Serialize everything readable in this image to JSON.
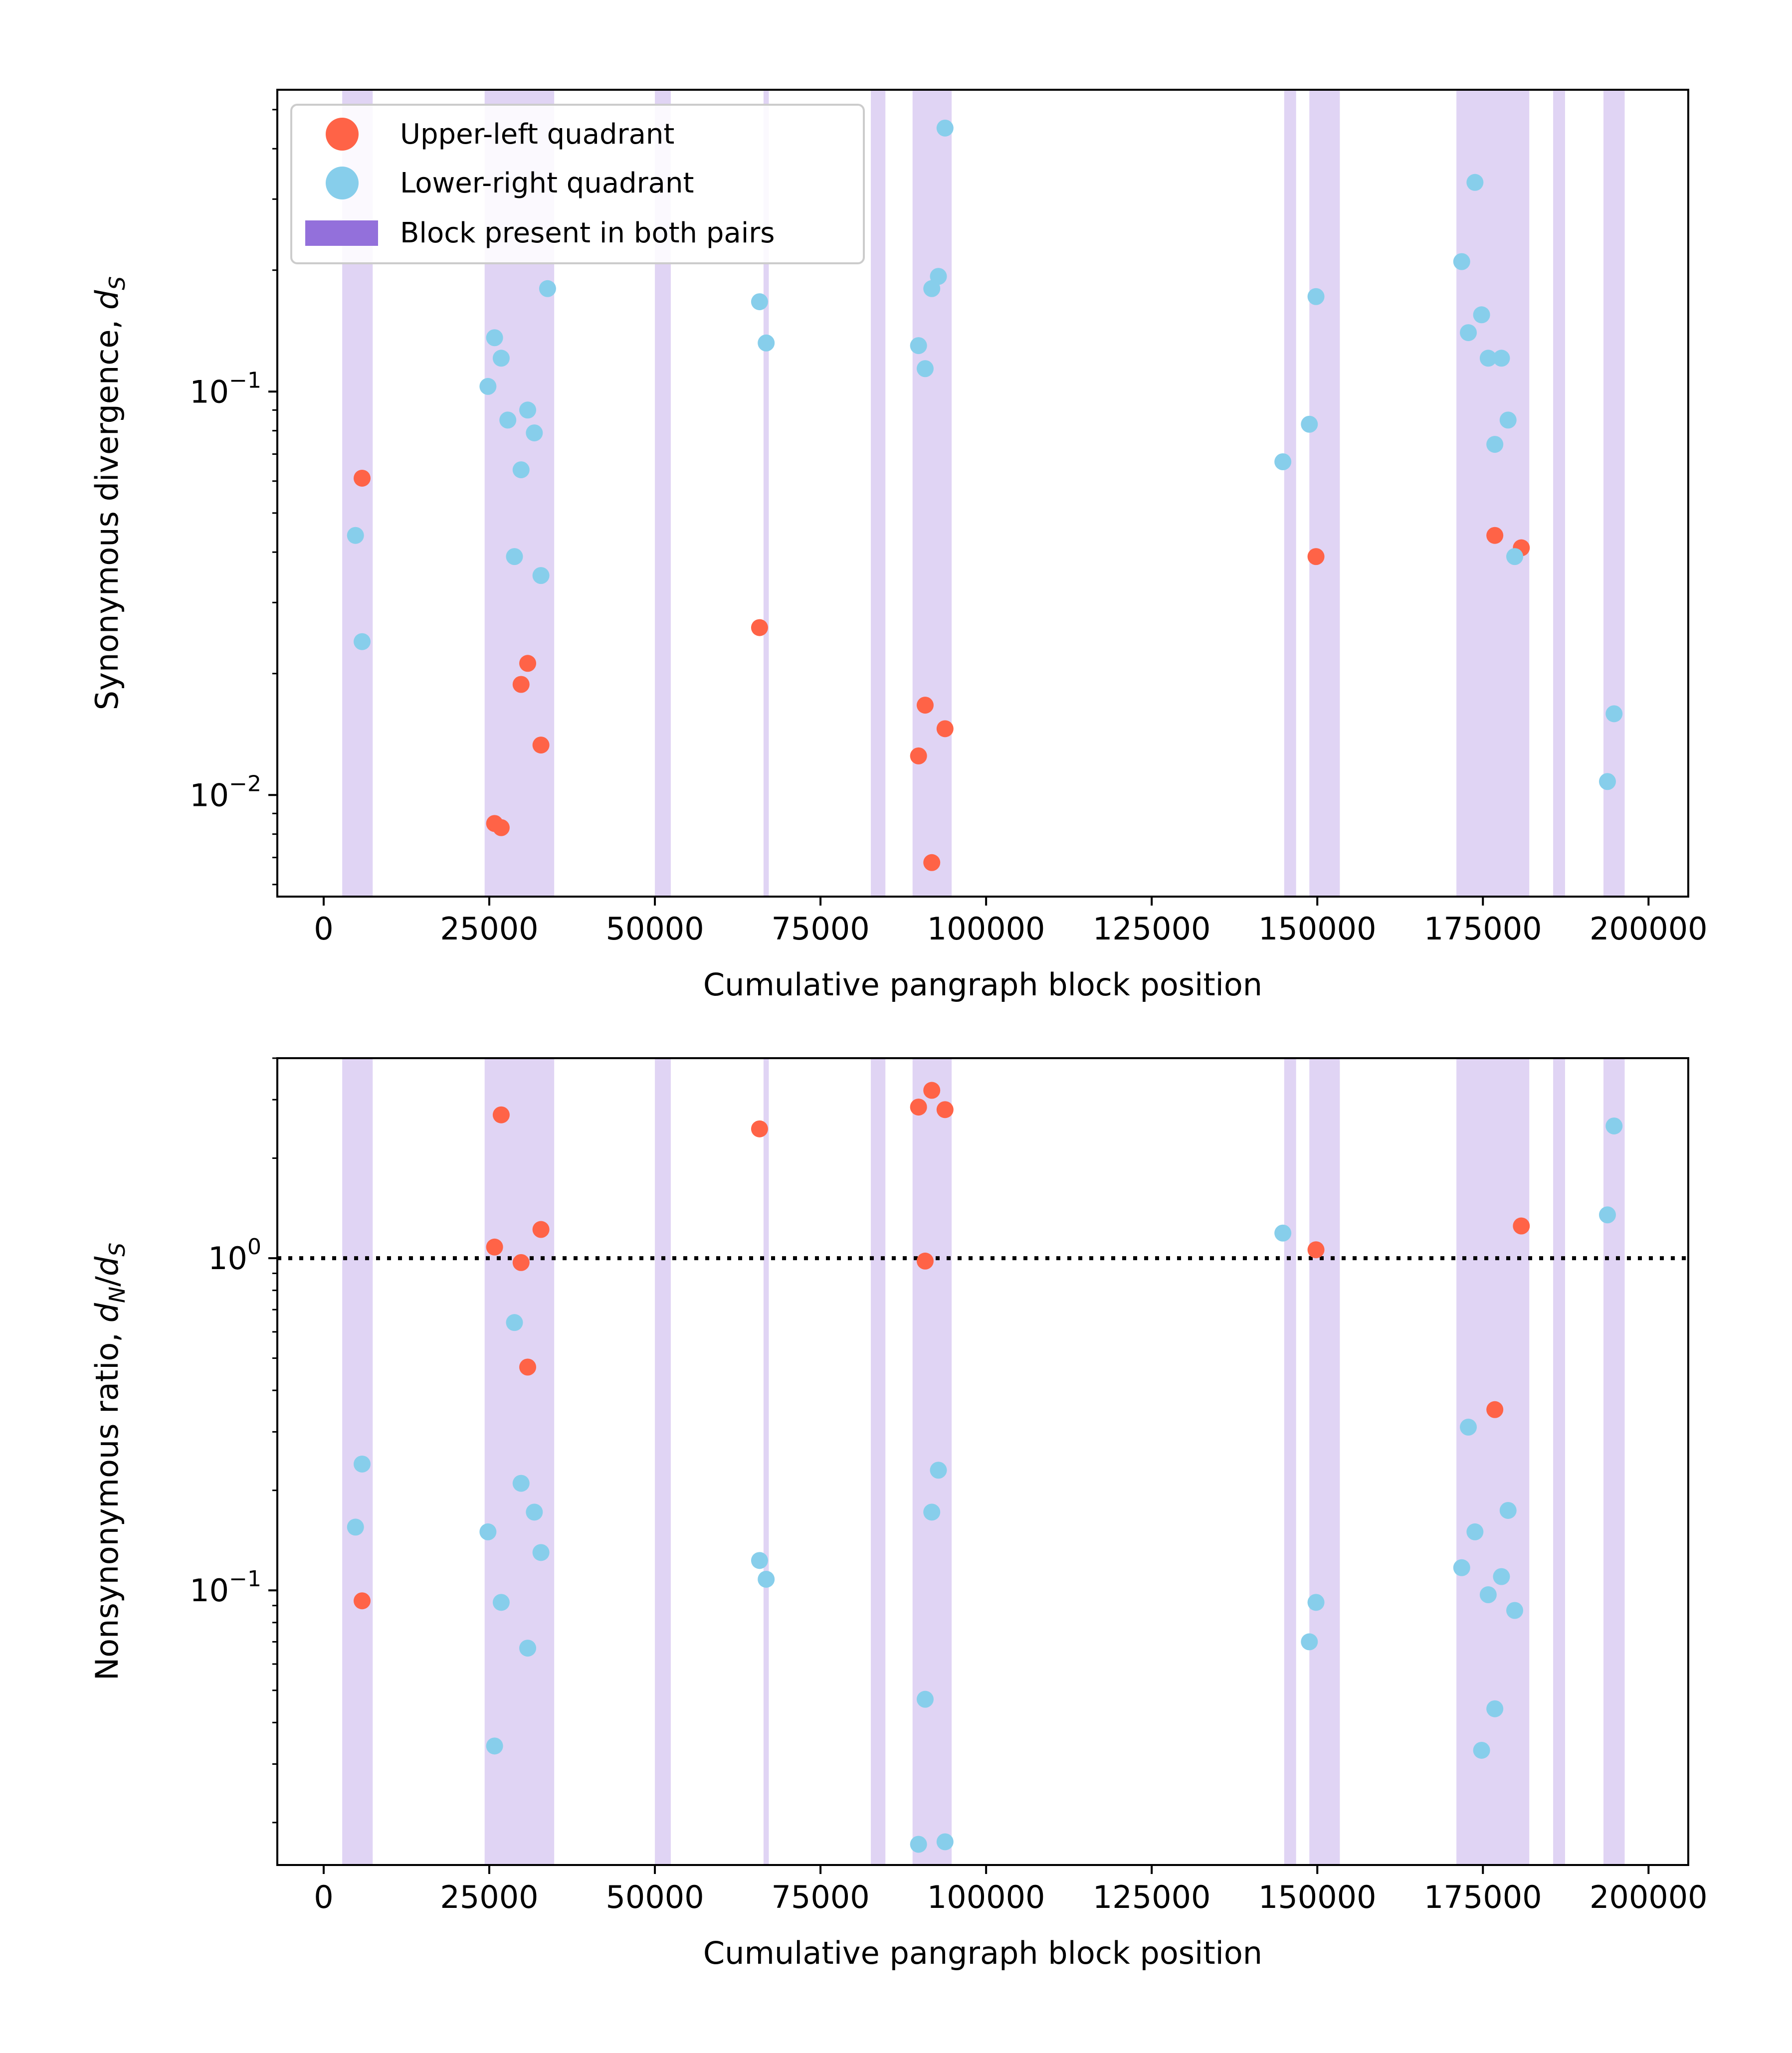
{
  "colors": {
    "upper_left": "#FF6347",
    "lower_right": "#87CEEB",
    "block_fill": "#9370DB",
    "block_shade": "#E0D4F4"
  },
  "legend": {
    "items": [
      {
        "label": "Upper-left quadrant",
        "color": "#FF6347",
        "marker": "circle"
      },
      {
        "label": "Lower-right quadrant",
        "color": "#87CEEB",
        "marker": "circle"
      },
      {
        "label": "Block present in both pairs",
        "color": "#9370DB",
        "marker": "rect"
      }
    ],
    "placement": "upper-left"
  },
  "chart_data": [
    {
      "type": "scatter",
      "xlabel": "Cumulative pangraph block position",
      "ylabel": "Synonymous divergence, d_S",
      "xlim": [
        -7000,
        206000
      ],
      "ylim": [
        0.0056,
        0.56
      ],
      "yscale": "log",
      "xticks": [
        0,
        25000,
        50000,
        75000,
        100000,
        125000,
        150000,
        175000,
        200000
      ],
      "yticks": [
        {
          "value": 0.01,
          "base": "10",
          "exp": "−2"
        },
        {
          "value": 0.1,
          "base": "10",
          "exp": "−1"
        }
      ],
      "grid": false,
      "legend": "upper-left",
      "shaded_blocks": [
        [
          2800,
          7400
        ],
        [
          24300,
          34800
        ],
        [
          50000,
          52400
        ],
        [
          66400,
          67200
        ],
        [
          82600,
          84800
        ],
        [
          88900,
          94800
        ],
        [
          145000,
          146800
        ],
        [
          148800,
          153400
        ],
        [
          171000,
          182000
        ],
        [
          185600,
          187400
        ],
        [
          193200,
          196400
        ]
      ],
      "series": [
        {
          "name": "Upper-left quadrant",
          "color": "#FF6347",
          "points": [
            [
              5800,
              0.061
            ],
            [
              25800,
              0.0085
            ],
            [
              26800,
              0.0083
            ],
            [
              29800,
              0.0188
            ],
            [
              30800,
              0.0212
            ],
            [
              32800,
              0.0133
            ],
            [
              65800,
              0.026
            ],
            [
              89800,
              0.0125
            ],
            [
              90800,
              0.0167
            ],
            [
              91800,
              0.0068
            ],
            [
              93800,
              0.0146
            ],
            [
              149800,
              0.039
            ],
            [
              176800,
              0.044
            ],
            [
              180800,
              0.041
            ]
          ]
        },
        {
          "name": "Lower-right quadrant",
          "color": "#87CEEB",
          "points": [
            [
              4800,
              0.044
            ],
            [
              5800,
              0.024
            ],
            [
              24800,
              0.103
            ],
            [
              25800,
              0.136
            ],
            [
              26800,
              0.121
            ],
            [
              27800,
              0.085
            ],
            [
              28800,
              0.039
            ],
            [
              29800,
              0.064
            ],
            [
              30800,
              0.09
            ],
            [
              31800,
              0.079
            ],
            [
              32800,
              0.035
            ],
            [
              33800,
              0.18
            ],
            [
              65800,
              0.167
            ],
            [
              66800,
              0.132
            ],
            [
              89800,
              0.13
            ],
            [
              90800,
              0.114
            ],
            [
              91800,
              0.18
            ],
            [
              92800,
              0.193
            ],
            [
              93800,
              0.45
            ],
            [
              144800,
              0.067
            ],
            [
              148800,
              0.083
            ],
            [
              149800,
              0.172
            ],
            [
              171800,
              0.21
            ],
            [
              172800,
              0.14
            ],
            [
              173800,
              0.33
            ],
            [
              174800,
              0.155
            ],
            [
              175800,
              0.121
            ],
            [
              176800,
              0.074
            ],
            [
              177800,
              0.121
            ],
            [
              178800,
              0.085
            ],
            [
              179800,
              0.039
            ],
            [
              193800,
              0.0108
            ],
            [
              194800,
              0.0159
            ]
          ]
        }
      ]
    },
    {
      "type": "scatter",
      "xlabel": "Cumulative pangraph block position",
      "ylabel": "Nonsynonymous ratio, d_N/d_S",
      "xlim": [
        -7000,
        206000
      ],
      "ylim": [
        0.0149,
        4.0
      ],
      "yscale": "log",
      "xticks": [
        0,
        25000,
        50000,
        75000,
        100000,
        125000,
        150000,
        175000,
        200000
      ],
      "yticks": [
        {
          "value": 0.1,
          "base": "10",
          "exp": "−1"
        },
        {
          "value": 1,
          "base": "10",
          "exp": "0"
        }
      ],
      "grid": false,
      "reference_line": {
        "y": 1.0,
        "style": "dotted"
      },
      "shaded_blocks": [
        [
          2800,
          7400
        ],
        [
          24300,
          34800
        ],
        [
          50000,
          52400
        ],
        [
          66400,
          67200
        ],
        [
          82600,
          84800
        ],
        [
          88900,
          94800
        ],
        [
          145000,
          146800
        ],
        [
          148800,
          153400
        ],
        [
          171000,
          182000
        ],
        [
          185600,
          187400
        ],
        [
          193200,
          196400
        ]
      ],
      "series": [
        {
          "name": "Upper-left quadrant",
          "color": "#FF6347",
          "points": [
            [
              5800,
              0.093
            ],
            [
              25800,
              1.08
            ],
            [
              26800,
              2.7
            ],
            [
              29800,
              0.97
            ],
            [
              30800,
              0.47
            ],
            [
              32800,
              1.22
            ],
            [
              65800,
              2.45
            ],
            [
              89800,
              2.85
            ],
            [
              90800,
              0.98
            ],
            [
              91800,
              3.2
            ],
            [
              93800,
              2.8
            ],
            [
              149800,
              1.06
            ],
            [
              176800,
              0.35
            ],
            [
              180800,
              1.25
            ]
          ]
        },
        {
          "name": "Lower-right quadrant",
          "color": "#87CEEB",
          "points": [
            [
              4800,
              0.155
            ],
            [
              5800,
              0.24
            ],
            [
              24800,
              0.15
            ],
            [
              25800,
              0.034
            ],
            [
              26800,
              0.092
            ],
            [
              28800,
              0.64
            ],
            [
              29800,
              0.21
            ],
            [
              30800,
              0.067
            ],
            [
              31800,
              0.172
            ],
            [
              32800,
              0.13
            ],
            [
              65800,
              0.123
            ],
            [
              66800,
              0.108
            ],
            [
              89800,
              0.0172
            ],
            [
              90800,
              0.047
            ],
            [
              91800,
              0.172
            ],
            [
              92800,
              0.23
            ],
            [
              93800,
              0.0175
            ],
            [
              144800,
              1.19
            ],
            [
              148800,
              0.07
            ],
            [
              149800,
              0.092
            ],
            [
              171800,
              0.117
            ],
            [
              172800,
              0.31
            ],
            [
              173800,
              0.15
            ],
            [
              174800,
              0.033
            ],
            [
              175800,
              0.097
            ],
            [
              176800,
              0.044
            ],
            [
              177800,
              0.11
            ],
            [
              178800,
              0.174
            ],
            [
              179800,
              0.087
            ],
            [
              193800,
              1.35
            ],
            [
              194800,
              2.5
            ]
          ]
        }
      ]
    }
  ]
}
